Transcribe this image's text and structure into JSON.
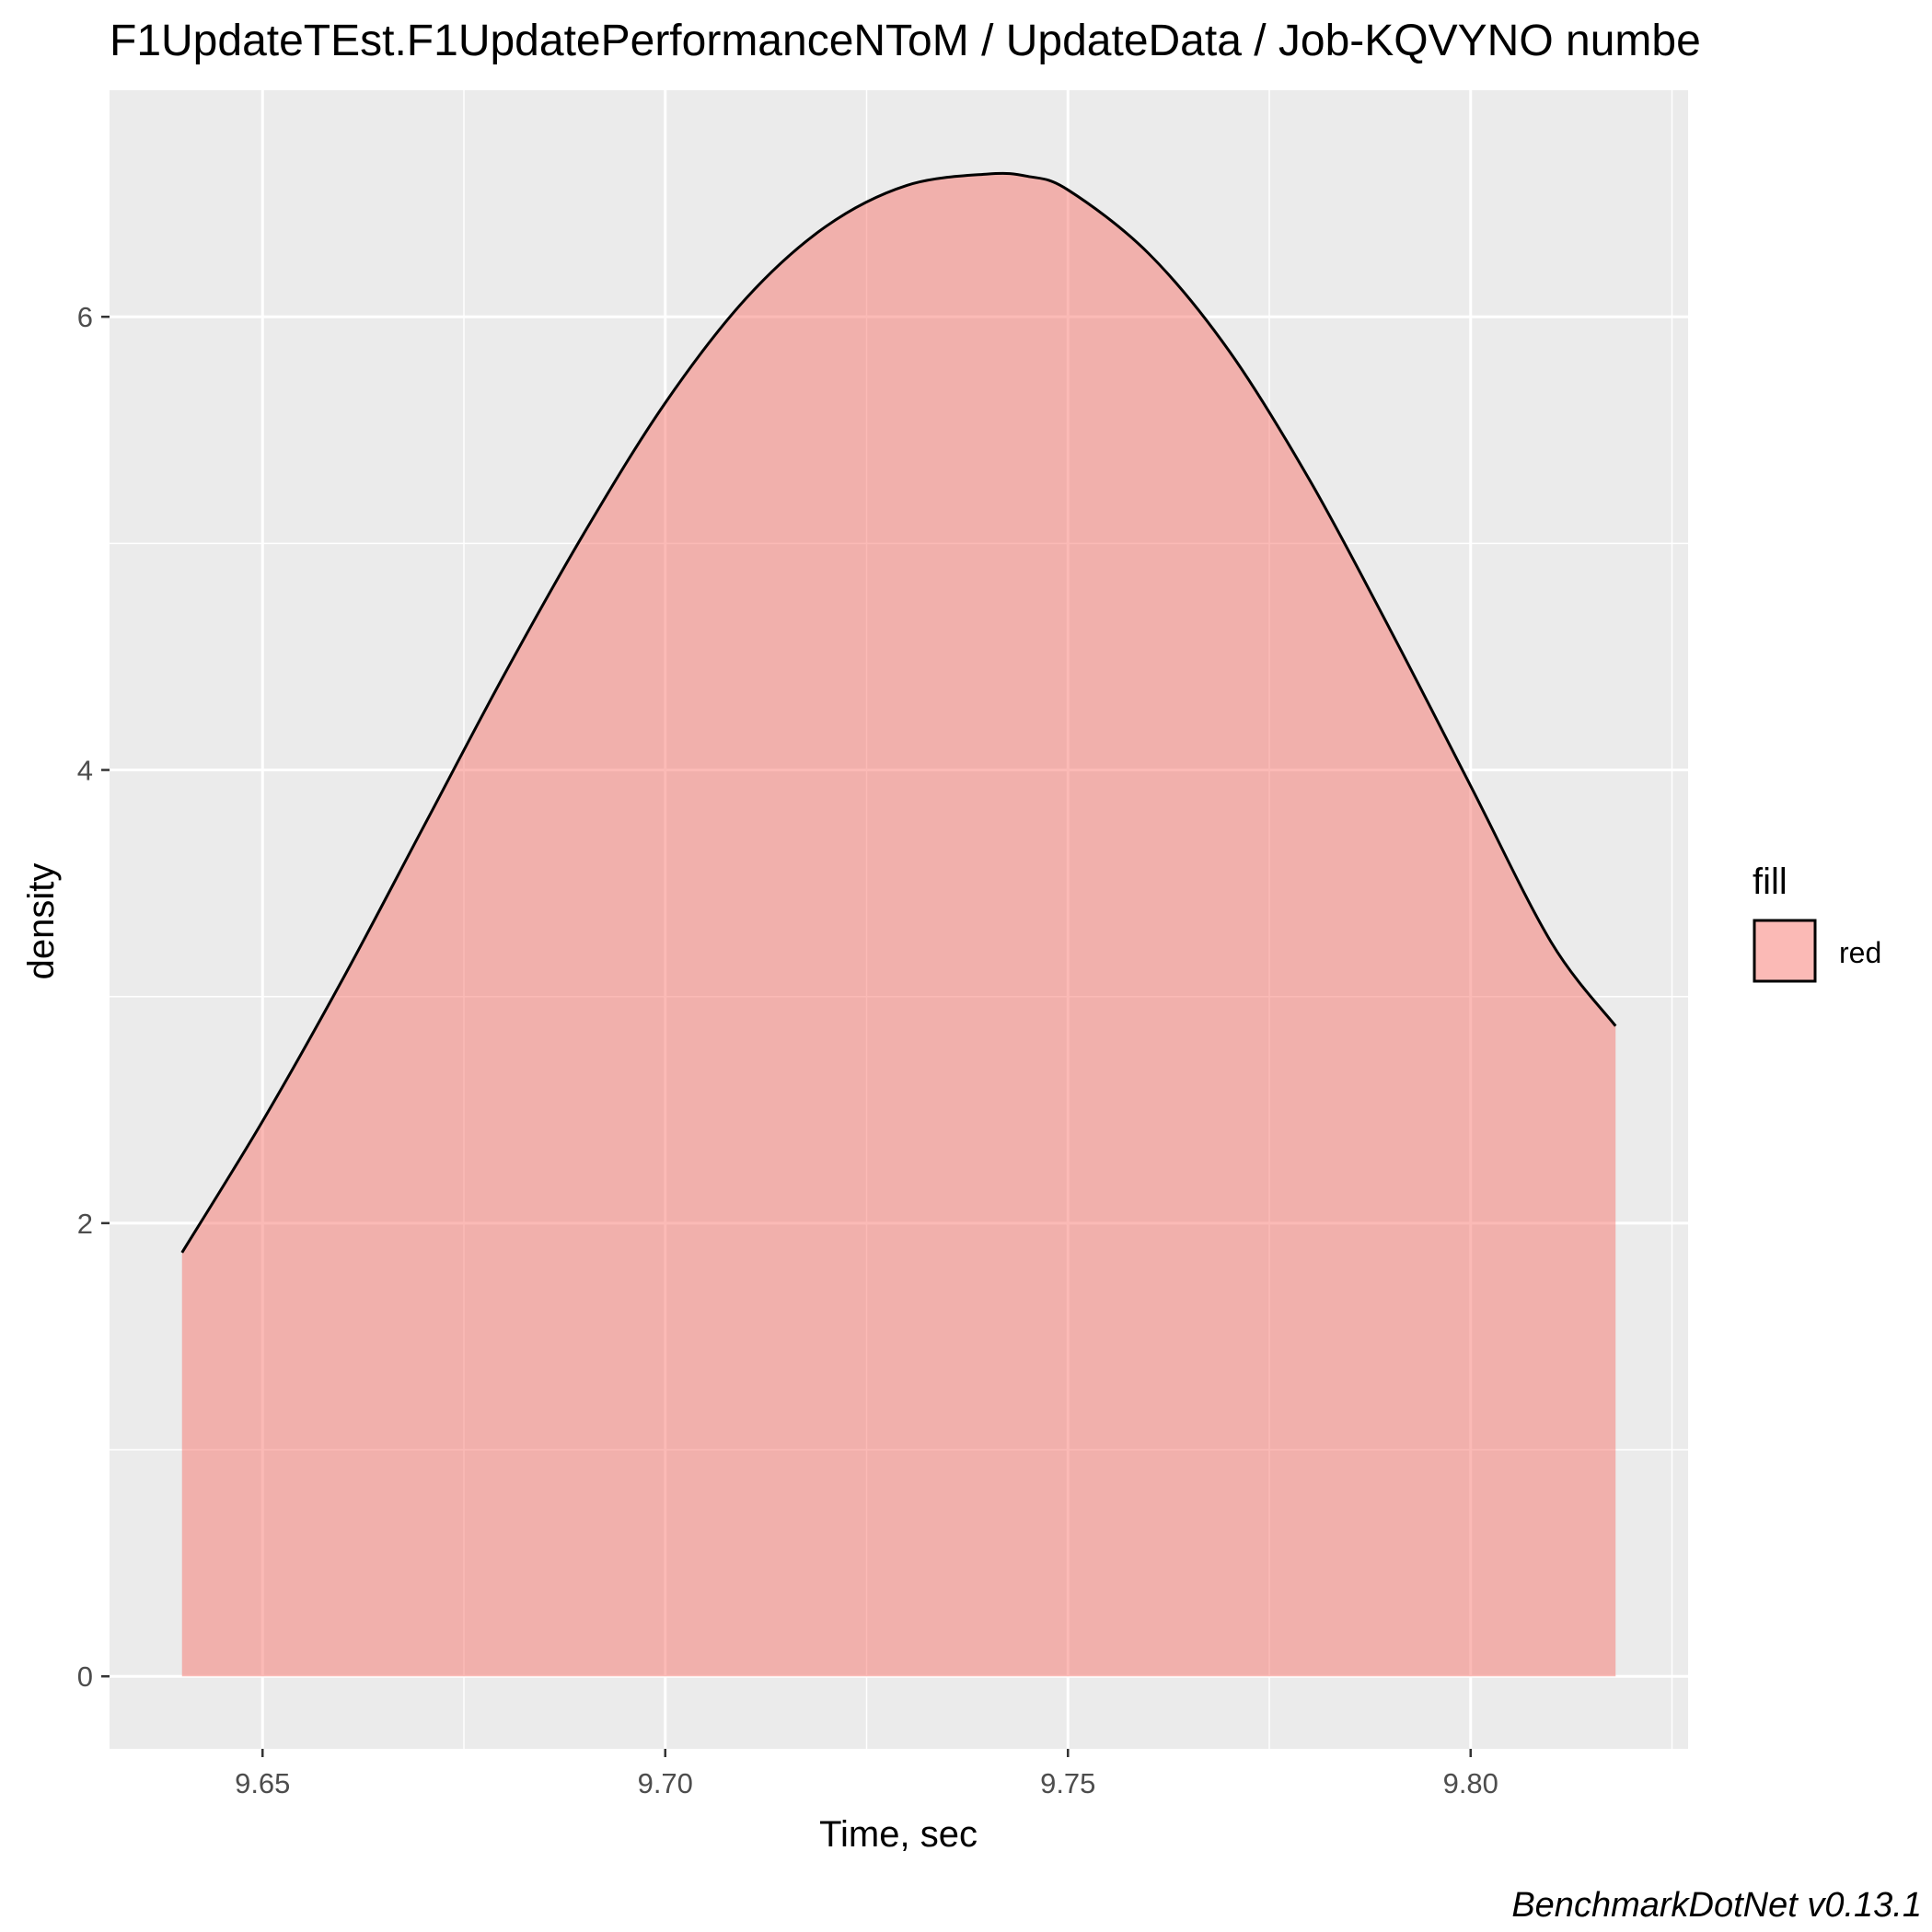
{
  "chart_data": {
    "type": "area",
    "title": "F1UpdateTEst.F1UpdatePerformanceNToM / UpdateData / Job-KQVYNO numbe",
    "xlabel": "Time, sec",
    "ylabel": "density",
    "caption": "BenchmarkDotNet v0.13.1",
    "xlim": [
      9.631,
      9.827
    ],
    "ylim": [
      -0.32,
      7.0
    ],
    "x_ticks": [
      9.65,
      9.7,
      9.75,
      9.8
    ],
    "x_tick_labels": [
      "9.65",
      "9.70",
      "9.75",
      "9.80"
    ],
    "y_ticks": [
      0,
      2,
      4,
      6
    ],
    "y_tick_labels": [
      "0",
      "2",
      "4",
      "6"
    ],
    "grid": true,
    "legend": {
      "title": "fill",
      "position": "right",
      "entries": [
        "red"
      ]
    },
    "colors": {
      "fill": "#F8766D",
      "fill_opacity": 0.5,
      "line": "#000000",
      "panel": "#EBEBEB",
      "grid": "#FFFFFF"
    },
    "series": [
      {
        "name": "red",
        "x": [
          9.64,
          9.65,
          9.66,
          9.67,
          9.68,
          9.69,
          9.7,
          9.71,
          9.72,
          9.73,
          9.74,
          9.745,
          9.75,
          9.76,
          9.77,
          9.78,
          9.79,
          9.8,
          9.81,
          9.818
        ],
        "y": [
          1.87,
          2.45,
          3.08,
          3.75,
          4.42,
          5.05,
          5.62,
          6.08,
          6.4,
          6.58,
          6.63,
          6.62,
          6.56,
          6.28,
          5.85,
          5.28,
          4.62,
          3.93,
          3.24,
          2.87
        ]
      }
    ]
  }
}
